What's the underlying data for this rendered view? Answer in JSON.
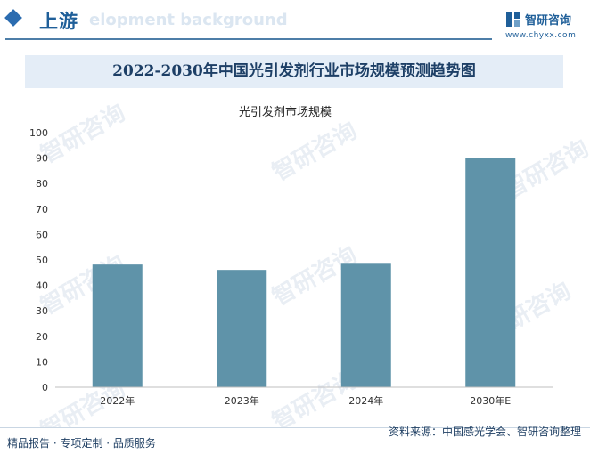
{
  "header": {
    "title": "上游",
    "background_text": "elopment background"
  },
  "logo": {
    "name": "智研咨询",
    "url": "www.chyxx.com",
    "color": "#1f5f99"
  },
  "banner": {
    "title": "2022-2030年中国光引发剂行业市场规模预测趋势图"
  },
  "watermark": {
    "text": "智研咨询"
  },
  "chart_data": {
    "type": "bar",
    "title": "光引发剂市场规模",
    "categories": [
      "2022年",
      "2023年",
      "2024年",
      "2030年E"
    ],
    "values": [
      48.2,
      46.1,
      48.5,
      90.0
    ],
    "ylim": [
      0,
      100
    ],
    "yticks": [
      0,
      10,
      20,
      30,
      40,
      50,
      60,
      70,
      80,
      90,
      100
    ],
    "bar_color": "#5f93a9",
    "grid": false,
    "legend": "none"
  },
  "footer": {
    "left": "精品报告 · 专项定制 · 品质服务",
    "right": "资料来源：中国感光学会、智研咨询整理"
  }
}
